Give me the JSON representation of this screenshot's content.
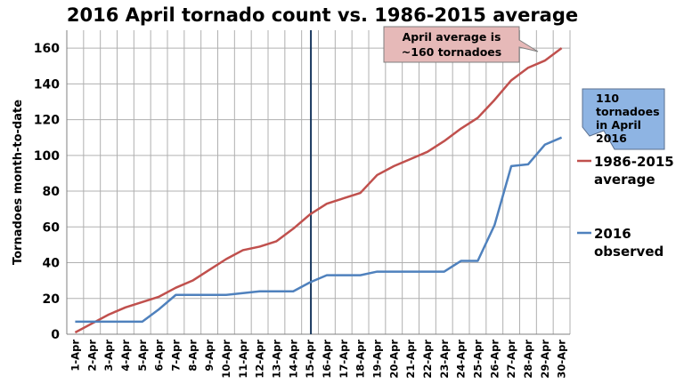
{
  "chart_data": {
    "type": "line",
    "title": "2016 April tornado count vs. 1986-2015 average",
    "xlabel": "",
    "ylabel": "Tornadoes month-to-date",
    "ylim": [
      0,
      170
    ],
    "yticks": [
      0,
      20,
      40,
      60,
      80,
      100,
      120,
      140,
      160
    ],
    "grid": true,
    "legend_position": "right",
    "categories": [
      "1-Apr",
      "2-Apr",
      "3-Apr",
      "4-Apr",
      "5-Apr",
      "6-Apr",
      "7-Apr",
      "8-Apr",
      "9-Apr",
      "10-Apr",
      "11-Apr",
      "12-Apr",
      "13-Apr",
      "14-Apr",
      "15-Apr",
      "16-Apr",
      "17-Apr",
      "18-Apr",
      "19-Apr",
      "20-Apr",
      "21-Apr",
      "22-Apr",
      "23-Apr",
      "24-Apr",
      "25-Apr",
      "26-Apr",
      "27-Apr",
      "28-Apr",
      "29-Apr",
      "30-Apr"
    ],
    "series": [
      {
        "name": "1986-2015 average",
        "color": "#c0504d",
        "values": [
          1,
          6,
          11,
          15,
          18,
          21,
          26,
          30,
          36,
          42,
          47,
          49,
          52,
          59,
          67,
          73,
          76,
          79,
          89,
          94,
          98,
          102,
          108,
          115,
          121,
          131,
          142,
          149,
          153,
          160
        ]
      },
      {
        "name": "2016 observed",
        "color": "#4f81bd",
        "values": [
          7,
          7,
          7,
          7,
          7,
          14,
          22,
          22,
          22,
          22,
          23,
          24,
          24,
          24,
          29,
          33,
          33,
          33,
          35,
          35,
          35,
          35,
          35,
          41,
          41,
          61,
          94,
          95,
          106,
          110
        ]
      }
    ],
    "marker_line": {
      "category": "15-Apr",
      "color": "#17375e"
    },
    "annotations": [
      {
        "id": "avg-callout",
        "lines": [
          "April average is",
          "~160 tornadoes"
        ],
        "fill": "#e6b9b8"
      },
      {
        "id": "obs-callout",
        "lines": [
          "110",
          "tornadoes",
          "in April",
          "2016"
        ],
        "fill": "#8eb4e3"
      }
    ]
  }
}
